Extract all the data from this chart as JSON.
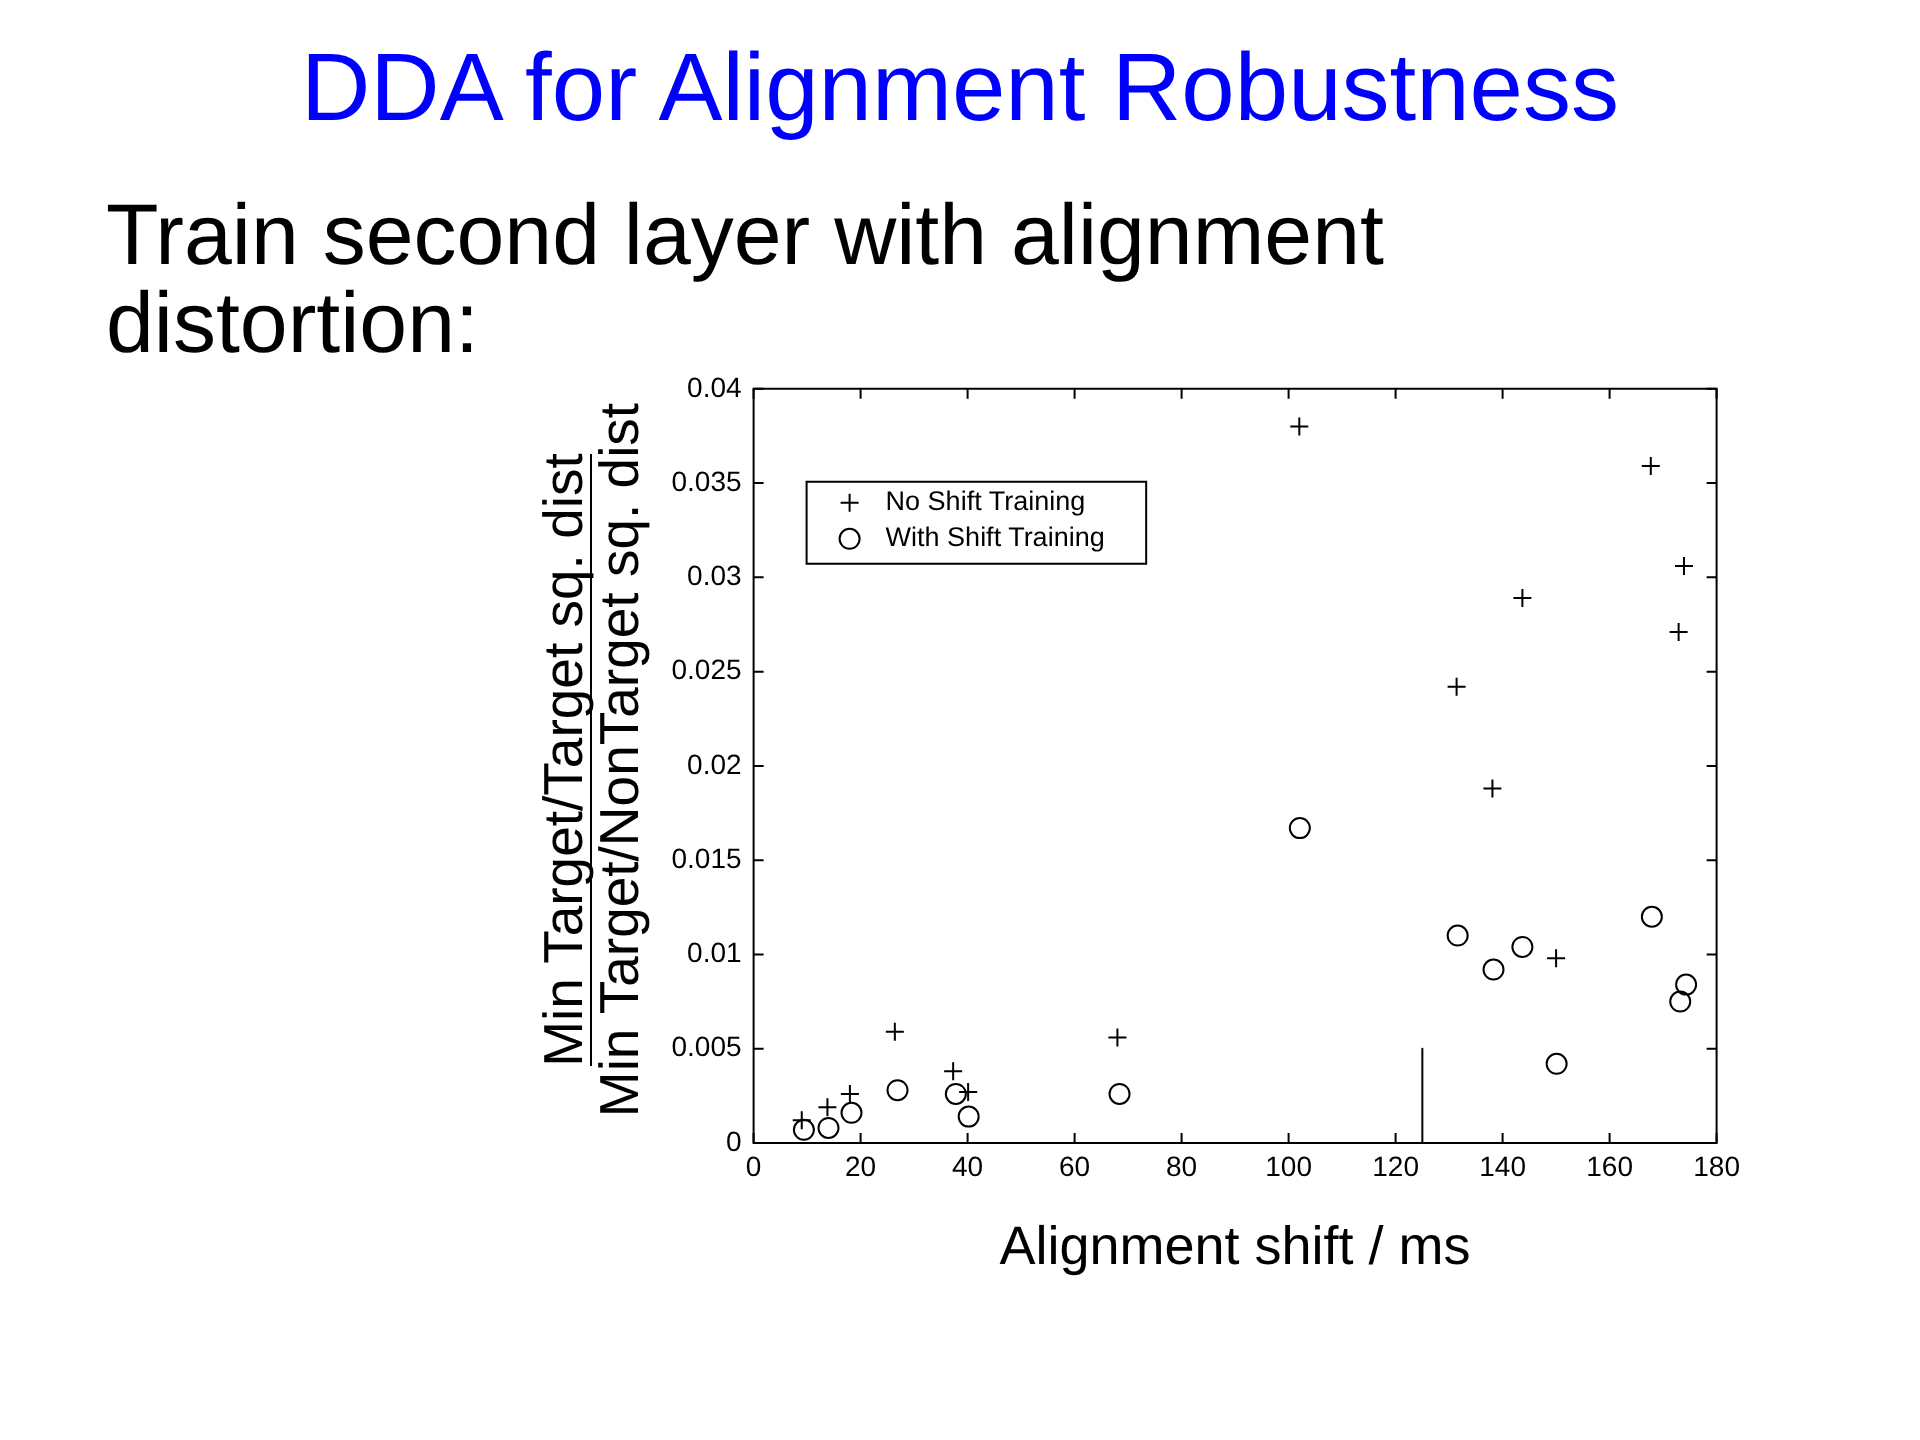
{
  "chart_data": {
    "type": "scatter",
    "title": "DDA for Alignment Robustness",
    "subtitle": "Train second layer with alignment distortion:",
    "xlabel": "Alignment shift / ms",
    "ylabel": "Min Target/Target sq. dist\nMin Target/NonTarget sq. dist",
    "xlim": [
      0,
      180
    ],
    "xticks": [
      0,
      20,
      40,
      60,
      80,
      100,
      120,
      140,
      160,
      180
    ],
    "ylim": [
      0,
      0.04
    ],
    "yticks": [
      0,
      0.005,
      0.01,
      0.015,
      0.02,
      0.025,
      0.03,
      0.035,
      0.04
    ],
    "grid": false,
    "legend": "top left",
    "series": [
      {
        "name": "No Shift Training",
        "type": "scatter",
        "marker": "cross",
        "color": "#000000",
        "x": [
          9.0,
          13.8,
          18.0,
          26.4,
          37.3,
          40.1,
          68.0,
          102.0,
          131.4,
          138.1,
          143.7,
          150.0,
          167.7,
          173.9,
          172.9
        ],
        "values": [
          0.0012,
          0.0019,
          0.0026,
          0.0059,
          0.0038,
          0.0027,
          0.0056,
          0.038,
          0.0242,
          0.0188,
          0.0289,
          0.0098,
          0.0359,
          0.0306,
          0.0271
        ]
      },
      {
        "name": "With Shift Training",
        "type": "scatter",
        "marker": "circle",
        "color": "#000000",
        "x": [
          9.4,
          14.0,
          18.3,
          26.9,
          37.8,
          40.2,
          68.4,
          102.1,
          131.6,
          138.3,
          143.7,
          150.1,
          167.9,
          174.3,
          173.2
        ],
        "values": [
          0.0007,
          0.0008,
          0.0016,
          0.0028,
          0.0026,
          0.0014,
          0.0026,
          0.0167,
          0.011,
          0.0092,
          0.0104,
          0.0042,
          0.012,
          0.0084,
          0.0075
        ]
      },
      {
        "type": "line",
        "marker": "none",
        "line_style": "solid",
        "color": "#000000",
        "x": [
          125,
          125
        ],
        "values": [
          0,
          0.005
        ]
      }
    ]
  }
}
